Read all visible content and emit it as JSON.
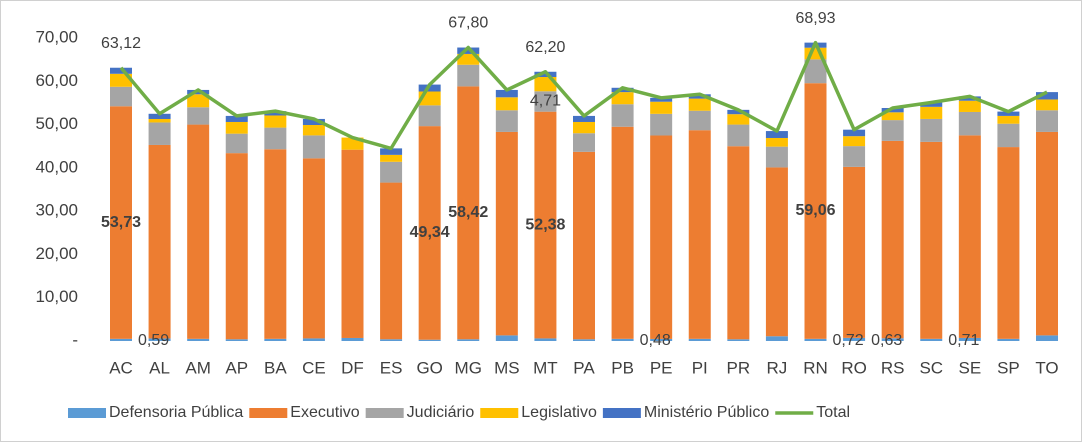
{
  "chart_data": {
    "type": "bar",
    "stacked": true,
    "categories": [
      "AC",
      "AL",
      "AM",
      "AP",
      "BA",
      "CE",
      "DF",
      "ES",
      "GO",
      "MG",
      "MS",
      "MT",
      "PA",
      "PB",
      "PE",
      "PI",
      "PR",
      "RJ",
      "RN",
      "RO",
      "RS",
      "SC",
      "SE",
      "SP",
      "TO"
    ],
    "ylim": [
      0,
      70
    ],
    "yticks": [
      {
        "value": 0,
        "label": "-"
      },
      {
        "value": 10,
        "label": "10,00"
      },
      {
        "value": 20,
        "label": "20,00"
      },
      {
        "value": 30,
        "label": "30,00"
      },
      {
        "value": 40,
        "label": "40,00"
      },
      {
        "value": 50,
        "label": "50,00"
      },
      {
        "value": 60,
        "label": "60,00"
      },
      {
        "value": 70,
        "label": "70,00"
      }
    ],
    "grid": false,
    "legend": "bottom",
    "series": [
      {
        "name": "Defensoria Pública",
        "color": "#5b9bd5",
        "values": [
          0.5,
          0.59,
          0.5,
          0.4,
          0.5,
          0.6,
          0.7,
          0.4,
          0.3,
          0.4,
          1.3,
          0.6,
          0.4,
          0.5,
          0.48,
          0.5,
          0.4,
          1.1,
          0.5,
          0.72,
          0.63,
          0.5,
          0.71,
          0.5,
          1.3
        ],
        "value_labels": [
          null,
          "0,59",
          null,
          null,
          null,
          null,
          null,
          null,
          null,
          null,
          null,
          null,
          null,
          null,
          "0,48",
          null,
          null,
          null,
          null,
          "0,72",
          "0,63",
          null,
          "0,71",
          null,
          null
        ]
      },
      {
        "name": "Executivo",
        "color": "#ed7d31",
        "values": [
          53.73,
          44.7,
          49.5,
          43.0,
          43.8,
          41.6,
          43.5,
          36.2,
          49.34,
          58.42,
          47.0,
          52.38,
          43.3,
          49.0,
          47.0,
          48.2,
          44.6,
          39.0,
          59.06,
          39.5,
          45.6,
          45.5,
          46.8,
          44.3,
          47.0
        ],
        "value_labels": [
          "53,73",
          null,
          null,
          null,
          null,
          null,
          null,
          null,
          "49,34",
          "58,42",
          null,
          "52,38",
          null,
          null,
          null,
          null,
          null,
          null,
          "59,06",
          null,
          null,
          null,
          null,
          null,
          null
        ]
      },
      {
        "name": "Judiciário",
        "color": "#a5a5a5",
        "values": [
          4.5,
          5.2,
          4.0,
          4.5,
          5.0,
          5.3,
          0,
          4.8,
          4.8,
          5.0,
          5.0,
          4.71,
          4.3,
          5.2,
          5.0,
          4.5,
          5.0,
          4.8,
          5.5,
          4.8,
          4.8,
          5.3,
          5.4,
          5.4,
          5.0
        ],
        "value_labels": [
          null,
          null,
          null,
          null,
          null,
          null,
          null,
          null,
          null,
          null,
          null,
          "4,71",
          null,
          null,
          null,
          null,
          null,
          null,
          null,
          null,
          null,
          null,
          null,
          null,
          null
        ]
      },
      {
        "name": "Legislativo",
        "color": "#ffc000",
        "values": [
          3.0,
          0.8,
          3.0,
          2.7,
          2.8,
          2.4,
          2.8,
          1.6,
          3.2,
          2.5,
          3.0,
          3.3,
          2.6,
          2.8,
          2.8,
          2.8,
          2.4,
          2.0,
          2.7,
          2.3,
          1.8,
          2.8,
          2.6,
          1.8,
          2.5
        ]
      },
      {
        "name": "Ministério Público",
        "color": "#4472c4",
        "values": [
          1.4,
          1.2,
          1.0,
          1.4,
          1.0,
          1.4,
          0,
          1.5,
          1.6,
          1.48,
          1.7,
          1.21,
          1.4,
          1.0,
          0.9,
          1.0,
          1.0,
          1.6,
          1.17,
          1.5,
          1.0,
          1.0,
          1.0,
          1.0,
          1.7
        ]
      },
      {
        "name": "Total",
        "color": "#70ad47",
        "type": "line",
        "values": [
          63.12,
          52.49,
          58.0,
          52.0,
          53.1,
          51.3,
          47.0,
          44.5,
          59.24,
          67.8,
          58.0,
          62.2,
          52.0,
          58.5,
          56.18,
          57.0,
          53.4,
          48.5,
          68.93,
          48.82,
          53.83,
          55.1,
          56.51,
          53.0,
          57.5
        ],
        "value_labels": [
          "63,12",
          null,
          null,
          null,
          null,
          null,
          null,
          null,
          null,
          "67,80",
          null,
          "62,20",
          null,
          null,
          null,
          null,
          null,
          null,
          "68,93",
          null,
          null,
          null,
          null,
          null,
          null
        ]
      }
    ]
  }
}
